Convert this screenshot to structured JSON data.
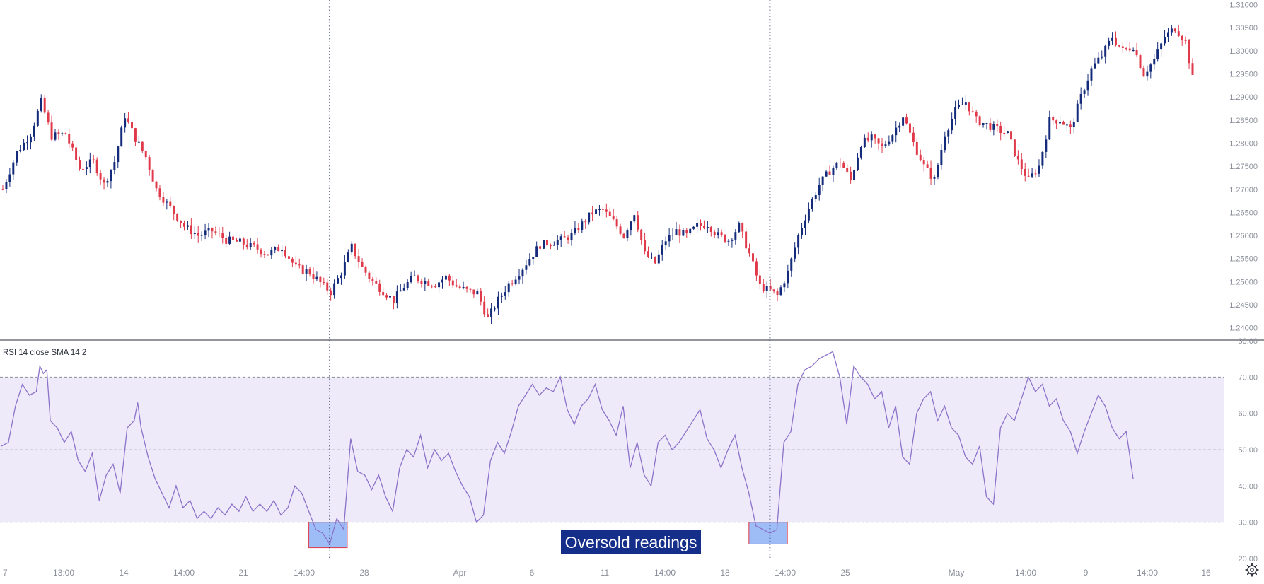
{
  "colors": {
    "up": "#142a7a",
    "down": "#e0394a",
    "rsi_line": "#8c72c9",
    "rsi_band": "#efeafa",
    "highlight_fill": "#9ebdf6",
    "highlight_stroke": "#e0394a",
    "annotation_bg": "#142e8a",
    "grid_dash": "#8a8e99",
    "vline": "#1d2b50",
    "tick_text": "#8a8e99"
  },
  "indicator_label": "RSI 14 close SMA 14 2",
  "annotation": {
    "text": "Oversold readings"
  },
  "chart_data": [
    {
      "type": "candlestick",
      "title": "",
      "ylim": [
        1.2375,
        1.311
      ],
      "y_ticks": [
        "1.24000",
        "1.24500",
        "1.25000",
        "1.25500",
        "1.26000",
        "1.26500",
        "1.27000",
        "1.27500",
        "1.28000",
        "1.28500",
        "1.29000",
        "1.29500",
        "1.30000",
        "1.30500",
        "1.31000"
      ],
      "y_tick_values": [
        1.24,
        1.245,
        1.25,
        1.255,
        1.26,
        1.265,
        1.27,
        1.275,
        1.28,
        1.285,
        1.29,
        1.295,
        1.3,
        1.305,
        1.31
      ],
      "x_ticks": [
        "7",
        "13:00",
        "14",
        "14:00",
        "21",
        "14:00",
        "28",
        "Apr",
        "6",
        "11",
        "14:00",
        "18",
        "14:00",
        "25",
        "May",
        "14:00",
        "9",
        "14:00",
        "16"
      ],
      "close_path": [
        [
          0,
          1.27
        ],
        [
          4,
          1.278
        ],
        [
          8,
          1.282
        ],
        [
          11,
          1.289
        ],
        [
          14,
          1.2815
        ],
        [
          18,
          1.282
        ],
        [
          22,
          1.2745
        ],
        [
          26,
          1.276
        ],
        [
          29,
          1.271
        ],
        [
          32,
          1.276
        ],
        [
          35,
          1.286
        ],
        [
          38,
          1.281
        ],
        [
          41,
          1.277
        ],
        [
          44,
          1.27
        ],
        [
          48,
          1.266
        ],
        [
          52,
          1.262
        ],
        [
          56,
          1.26
        ],
        [
          60,
          1.261
        ],
        [
          64,
          1.259
        ],
        [
          68,
          1.2585
        ],
        [
          72,
          1.2575
        ],
        [
          76,
          1.256
        ],
        [
          80,
          1.2575
        ],
        [
          84,
          1.253
        ],
        [
          88,
          1.252
        ],
        [
          92,
          1.249
        ],
        [
          94,
          1.2478
        ],
        [
          97,
          1.252
        ],
        [
          100,
          1.2575
        ],
        [
          103,
          1.253
        ],
        [
          106,
          1.25
        ],
        [
          109,
          1.248
        ],
        [
          112,
          1.246
        ],
        [
          115,
          1.249
        ],
        [
          118,
          1.251
        ],
        [
          121,
          1.25
        ],
        [
          124,
          1.2495
        ],
        [
          127,
          1.251
        ],
        [
          130,
          1.249
        ],
        [
          133,
          1.248
        ],
        [
          136,
          1.2475
        ],
        [
          139,
          1.242
        ],
        [
          142,
          1.246
        ],
        [
          145,
          1.2495
        ],
        [
          148,
          1.252
        ],
        [
          151,
          1.255
        ],
        [
          154,
          1.258
        ],
        [
          157,
          1.2585
        ],
        [
          160,
          1.259
        ],
        [
          163,
          1.26
        ],
        [
          166,
          1.2625
        ],
        [
          169,
          1.265
        ],
        [
          172,
          1.2655
        ],
        [
          175,
          1.263
        ],
        [
          178,
          1.26
        ],
        [
          181,
          1.265
        ],
        [
          184,
          1.256
        ],
        [
          187,
          1.254
        ],
        [
          190,
          1.259
        ],
        [
          193,
          1.261
        ],
        [
          196,
          1.26
        ],
        [
          199,
          1.262
        ],
        [
          202,
          1.2625
        ],
        [
          205,
          1.26
        ],
        [
          208,
          1.259
        ],
        [
          211,
          1.262
        ],
        [
          214,
          1.256
        ],
        [
          217,
          1.249
        ],
        [
          220,
          1.248
        ],
        [
          222,
          1.247
        ],
        [
          225,
          1.252
        ],
        [
          228,
          1.26
        ],
        [
          231,
          1.266
        ],
        [
          234,
          1.271
        ],
        [
          237,
          1.274
        ],
        [
          240,
          1.276
        ],
        [
          243,
          1.272
        ],
        [
          246,
          1.28
        ],
        [
          249,
          1.281
        ],
        [
          252,
          1.279
        ],
        [
          255,
          1.282
        ],
        [
          258,
          1.286
        ],
        [
          261,
          1.28
        ],
        [
          264,
          1.275
        ],
        [
          267,
          1.272
        ],
        [
          270,
          1.282
        ],
        [
          273,
          1.287
        ],
        [
          276,
          1.289
        ],
        [
          279,
          1.285
        ],
        [
          282,
          1.284
        ],
        [
          285,
          1.283
        ],
        [
          288,
          1.282
        ],
        [
          291,
          1.276
        ],
        [
          294,
          1.272
        ],
        [
          297,
          1.275
        ],
        [
          300,
          1.285
        ],
        [
          303,
          1.285
        ],
        [
          306,
          1.283
        ],
        [
          309,
          1.29
        ],
        [
          312,
          1.296
        ],
        [
          315,
          1.299
        ],
        [
          318,
          1.303
        ],
        [
          321,
          1.3
        ],
        [
          324,
          1.301
        ],
        [
          327,
          1.295
        ],
        [
          330,
          1.298
        ],
        [
          333,
          1.303
        ],
        [
          336,
          1.305
        ],
        [
          339,
          1.302
        ],
        [
          341,
          1.294
        ]
      ],
      "highs_lows_note_hidden": ""
    },
    {
      "type": "line",
      "title": "",
      "ylim": [
        20,
        80
      ],
      "y_ticks": [
        "80.00",
        "70.00",
        "60.00",
        "50.00",
        "40.00",
        "30.00",
        "20.00"
      ],
      "y_tick_values": [
        80,
        70,
        60,
        50,
        40,
        30,
        20
      ],
      "band": [
        30,
        70
      ],
      "reference_lines": [
        30,
        50,
        70
      ],
      "series": [
        {
          "name": "",
          "points": [
            [
              0,
              51
            ],
            [
              2,
              52
            ],
            [
              4,
              62
            ],
            [
              6,
              68
            ],
            [
              8,
              65
            ],
            [
              10,
              66
            ],
            [
              11,
              73
            ],
            [
              12,
              71
            ],
            [
              13,
              72
            ],
            [
              14,
              58
            ],
            [
              16,
              56
            ],
            [
              18,
              52
            ],
            [
              20,
              55
            ],
            [
              22,
              47
            ],
            [
              24,
              44
            ],
            [
              26,
              49
            ],
            [
              28,
              36
            ],
            [
              30,
              43
            ],
            [
              32,
              46
            ],
            [
              34,
              38
            ],
            [
              36,
              56
            ],
            [
              38,
              58
            ],
            [
              39,
              63
            ],
            [
              40,
              56
            ],
            [
              42,
              48
            ],
            [
              44,
              42
            ],
            [
              46,
              38
            ],
            [
              48,
              34
            ],
            [
              50,
              40
            ],
            [
              52,
              34
            ],
            [
              54,
              36
            ],
            [
              56,
              31
            ],
            [
              58,
              33
            ],
            [
              60,
              31
            ],
            [
              62,
              34
            ],
            [
              64,
              32
            ],
            [
              66,
              35
            ],
            [
              68,
              33
            ],
            [
              70,
              37
            ],
            [
              72,
              33
            ],
            [
              74,
              35
            ],
            [
              76,
              33
            ],
            [
              78,
              36
            ],
            [
              80,
              32
            ],
            [
              82,
              34
            ],
            [
              84,
              40
            ],
            [
              86,
              38
            ],
            [
              88,
              33
            ],
            [
              90,
              28
            ],
            [
              92,
              27
            ],
            [
              94,
              24
            ],
            [
              96,
              31
            ],
            [
              98,
              28
            ],
            [
              100,
              53
            ],
            [
              102,
              44
            ],
            [
              104,
              43
            ],
            [
              106,
              39
            ],
            [
              108,
              43
            ],
            [
              110,
              37
            ],
            [
              112,
              33
            ],
            [
              114,
              45
            ],
            [
              116,
              50
            ],
            [
              118,
              48
            ],
            [
              120,
              54
            ],
            [
              122,
              45
            ],
            [
              124,
              50
            ],
            [
              126,
              47
            ],
            [
              128,
              49
            ],
            [
              130,
              44
            ],
            [
              132,
              40
            ],
            [
              134,
              37
            ],
            [
              136,
              30
            ],
            [
              138,
              32
            ],
            [
              140,
              47
            ],
            [
              142,
              52
            ],
            [
              144,
              49
            ],
            [
              146,
              55
            ],
            [
              148,
              62
            ],
            [
              150,
              65
            ],
            [
              152,
              68
            ],
            [
              154,
              65
            ],
            [
              156,
              67
            ],
            [
              158,
              66
            ],
            [
              160,
              70
            ],
            [
              162,
              61
            ],
            [
              164,
              57
            ],
            [
              166,
              62
            ],
            [
              168,
              64
            ],
            [
              170,
              68
            ],
            [
              172,
              61
            ],
            [
              174,
              58
            ],
            [
              176,
              54
            ],
            [
              178,
              62
            ],
            [
              180,
              45
            ],
            [
              182,
              52
            ],
            [
              184,
              43
            ],
            [
              186,
              40
            ],
            [
              188,
              52
            ],
            [
              190,
              54
            ],
            [
              192,
              50
            ],
            [
              194,
              52
            ],
            [
              196,
              55
            ],
            [
              198,
              58
            ],
            [
              200,
              61
            ],
            [
              202,
              53
            ],
            [
              204,
              50
            ],
            [
              206,
              45
            ],
            [
              208,
              50
            ],
            [
              210,
              54
            ],
            [
              212,
              45
            ],
            [
              214,
              38
            ],
            [
              216,
              29
            ],
            [
              218,
              28
            ],
            [
              220,
              27
            ],
            [
              222,
              28
            ],
            [
              224,
              52
            ],
            [
              226,
              55
            ],
            [
              228,
              68
            ],
            [
              230,
              72
            ],
            [
              232,
              73
            ],
            [
              234,
              75
            ],
            [
              236,
              76
            ],
            [
              238,
              77
            ],
            [
              240,
              70
            ],
            [
              242,
              57
            ],
            [
              244,
              73
            ],
            [
              246,
              70
            ],
            [
              248,
              68
            ],
            [
              250,
              64
            ],
            [
              252,
              66
            ],
            [
              254,
              56
            ],
            [
              256,
              62
            ],
            [
              258,
              48
            ],
            [
              260,
              46
            ],
            [
              262,
              60
            ],
            [
              264,
              64
            ],
            [
              266,
              66
            ],
            [
              268,
              58
            ],
            [
              270,
              62
            ],
            [
              272,
              56
            ],
            [
              274,
              54
            ],
            [
              276,
              48
            ],
            [
              278,
              46
            ],
            [
              280,
              51
            ],
            [
              282,
              37
            ],
            [
              284,
              35
            ],
            [
              286,
              56
            ],
            [
              288,
              60
            ],
            [
              290,
              58
            ],
            [
              292,
              64
            ],
            [
              294,
              70
            ],
            [
              296,
              66
            ],
            [
              298,
              68
            ],
            [
              300,
              62
            ],
            [
              302,
              64
            ],
            [
              304,
              58
            ],
            [
              306,
              55
            ],
            [
              308,
              49
            ],
            [
              310,
              55
            ],
            [
              312,
              60
            ],
            [
              314,
              65
            ],
            [
              316,
              62
            ],
            [
              318,
              56
            ],
            [
              320,
              53
            ],
            [
              322,
              55
            ],
            [
              324,
              42
            ]
          ]
        }
      ],
      "highlights": [
        {
          "x_from": 88,
          "x_to": 99,
          "y_from": 23,
          "y_to": 30
        },
        {
          "x_from": 214,
          "x_to": 225,
          "y_from": 24,
          "y_to": 30
        }
      ],
      "vertical_markers": [
        94,
        220
      ]
    }
  ]
}
